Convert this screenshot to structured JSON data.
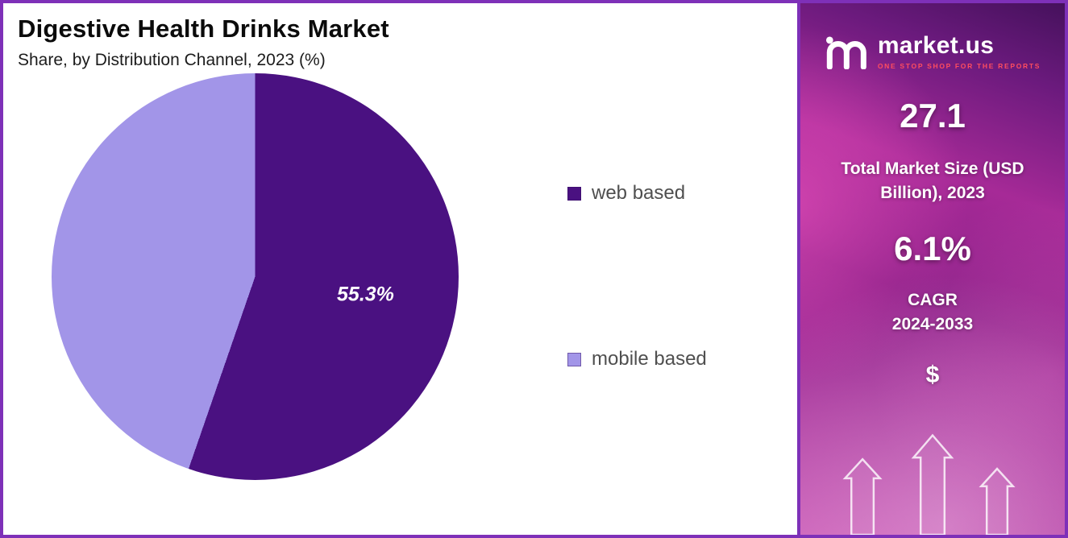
{
  "header": {
    "title": "Digestive Health Drinks Market",
    "subtitle": "Share, by Distribution Channel, 2023 (%)"
  },
  "chart_data": {
    "type": "pie",
    "title": "Digestive Health Drinks Market",
    "subtitle": "Share, by Distribution Channel, 2023 (%)",
    "slices": [
      {
        "label": "web based",
        "value": 55.3,
        "color": "#4a1181"
      },
      {
        "label": "mobile based",
        "value": 44.7,
        "color": "#a295e8"
      }
    ],
    "start_angle_deg": 0,
    "data_label": "55.3%",
    "data_label_slice": 0,
    "legend_position": "right"
  },
  "sidebar": {
    "brand": "market.us",
    "tagline": "ONE STOP SHOP FOR THE REPORTS",
    "stat1_value": "27.1",
    "stat1_label": "Total Market Size (USD Billion), 2023",
    "stat2_value": "6.1%",
    "cagr_label": "CAGR",
    "cagr_period": "2024-2033",
    "currency_symbol": "$",
    "colors": {
      "accent_border": "#7e30b8",
      "tagline_red": "#ff4d5f",
      "panel_magenta": "#a62a97"
    }
  }
}
